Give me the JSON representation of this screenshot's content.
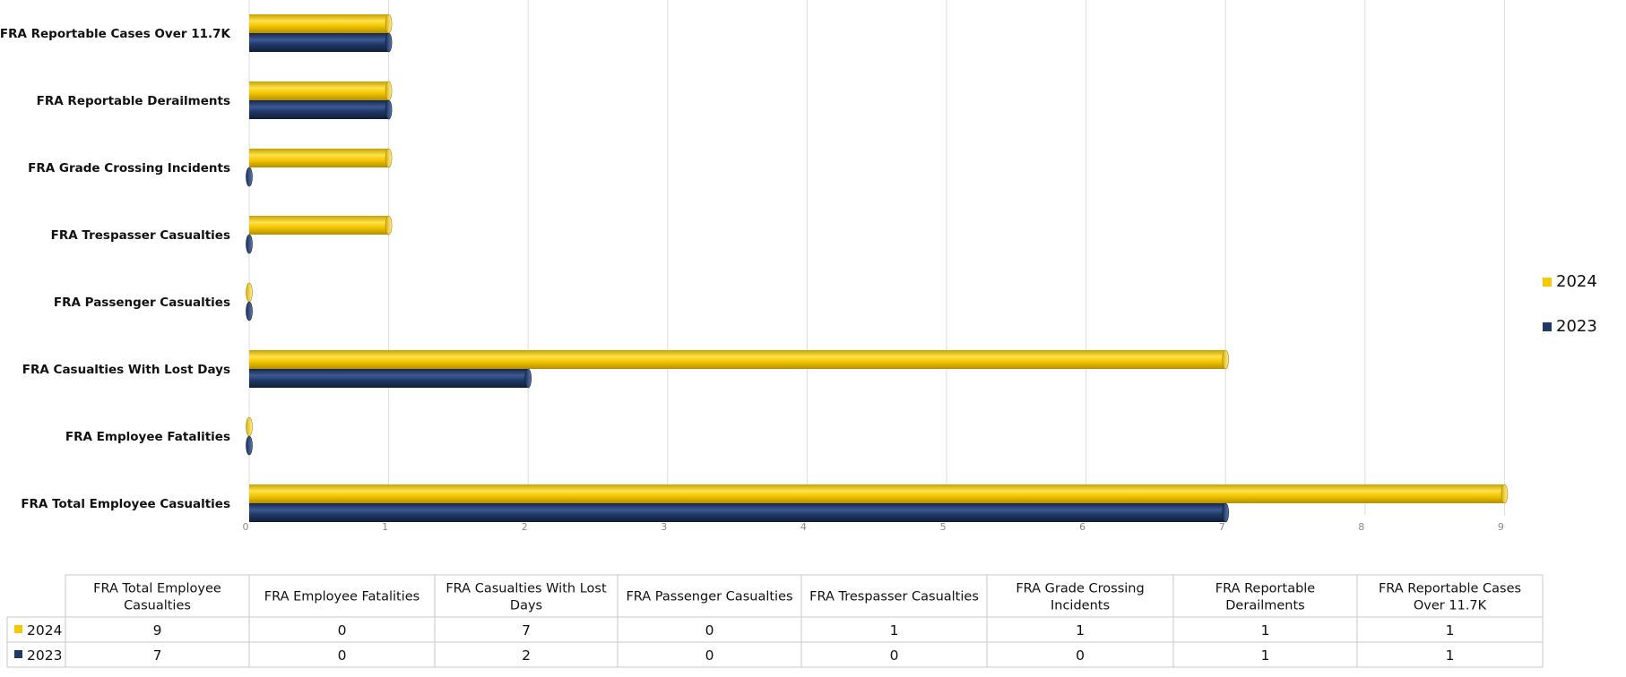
{
  "chart_data": {
    "type": "bar",
    "orientation": "horizontal",
    "categories": [
      "FRA Total Employee Casualties",
      "FRA Employee Fatalities",
      "FRA Casualties With Lost Days",
      "FRA Passenger Casualties",
      "FRA Trespasser Casualties",
      "FRA Grade Crossing Incidents",
      "FRA Reportable Derailments",
      "FRA Reportable Cases Over 11.7K"
    ],
    "category_labels_axis": [
      "FRA Total Employee Casualties",
      "FRA Employee Fatalities",
      "FRA Casualties With Lost Days",
      "FRA Passenger Casualties",
      "FRA Trespasser Casualties",
      "FRA Grade Crossing Incidents",
      "FRA Reportable Derailments",
      "FRA Reportable Cases Over 11.7K"
    ],
    "series": [
      {
        "name": "2024",
        "color": "#f5c800",
        "values": [
          9,
          0,
          7,
          0,
          1,
          1,
          1,
          1
        ]
      },
      {
        "name": "2023",
        "color": "#1f3864",
        "values": [
          7,
          0,
          2,
          0,
          0,
          0,
          1,
          1
        ]
      }
    ],
    "xlim": [
      0,
      9
    ],
    "x_ticks": [
      "0",
      "1",
      "2",
      "3",
      "4",
      "5",
      "6",
      "7",
      "8",
      "9"
    ],
    "grid": true,
    "legend": {
      "placement": "right",
      "entries": [
        "2024",
        "2023"
      ]
    },
    "data_table": {
      "headers": [
        [
          "FRA Total Employee",
          "Casualties"
        ],
        [
          "FRA Employee Fatalities"
        ],
        [
          "FRA Casualties With Lost",
          "Days"
        ],
        [
          "FRA Passenger Casualties"
        ],
        [
          "FRA Trespasser Casualties"
        ],
        [
          "FRA Grade Crossing",
          "Incidents"
        ],
        [
          "FRA Reportable",
          "Derailments"
        ],
        [
          "FRA Reportable Cases",
          "Over 11.7K"
        ]
      ],
      "rows": [
        {
          "series": "2024",
          "values": [
            "9",
            "0",
            "7",
            "0",
            "1",
            "1",
            "1",
            "1"
          ]
        },
        {
          "series": "2023",
          "values": [
            "7",
            "0",
            "2",
            "0",
            "0",
            "0",
            "1",
            "1"
          ]
        }
      ]
    }
  }
}
